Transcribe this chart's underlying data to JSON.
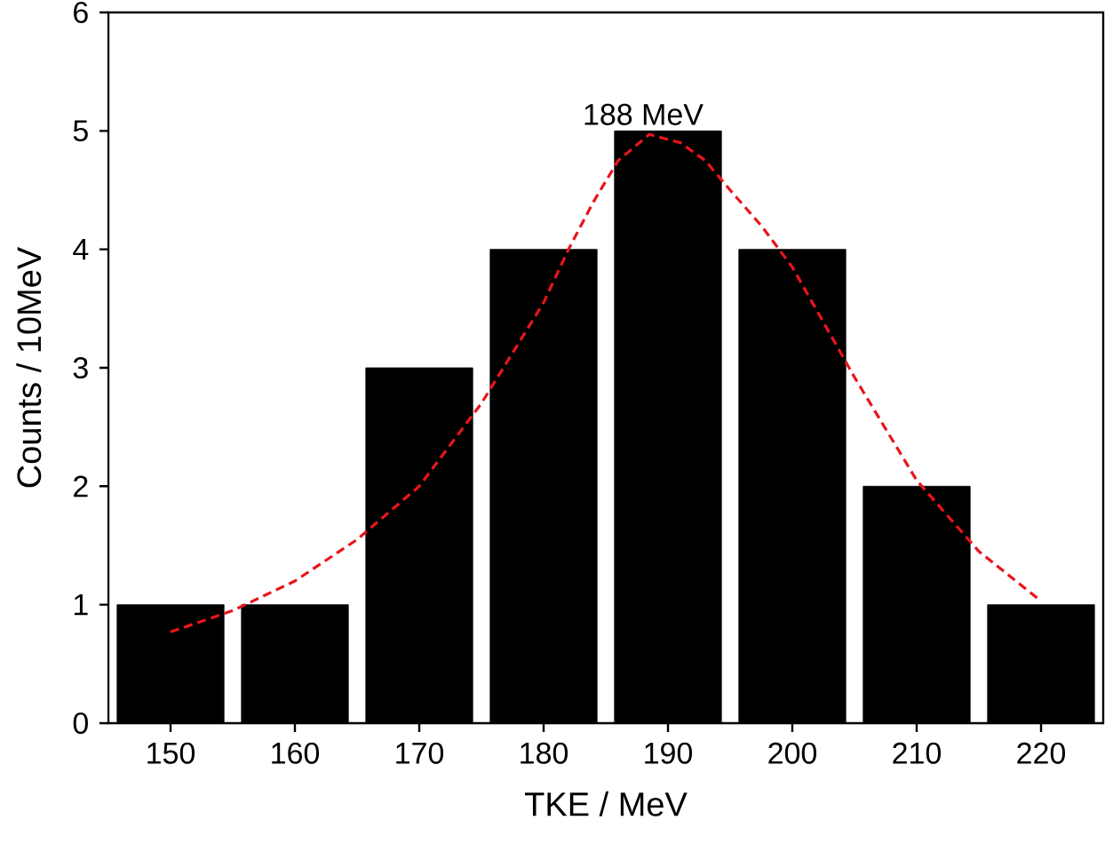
{
  "chart_data": {
    "type": "histogram",
    "xlabel": "TKE / MeV",
    "ylabel": "Counts / 10MeV",
    "bins": [
      145,
      155,
      165,
      175,
      185,
      195,
      205,
      215,
      225
    ],
    "values": [
      1,
      1,
      3,
      4,
      5,
      4,
      2,
      1
    ],
    "color": "#000000",
    "series": [
      {
        "type": "line",
        "color": "#e8151b",
        "line_style": "dashed",
        "x": [
          150,
          155,
          160,
          165,
          170,
          175,
          180,
          182,
          184,
          186,
          188.5,
          191,
          193,
          195,
          197.5,
          200,
          205,
          210,
          215,
          220
        ],
        "values": [
          0.77,
          0.95,
          1.2,
          1.55,
          2.0,
          2.7,
          3.55,
          4.0,
          4.4,
          4.75,
          4.97,
          4.9,
          4.75,
          4.5,
          4.2,
          3.85,
          2.92,
          2.05,
          1.45,
          1.03
        ]
      }
    ],
    "annotations": [
      {
        "text": "188 MeV",
        "x": 188,
        "y": 5
      }
    ],
    "xlim": [
      145,
      225
    ],
    "xticks": [
      150,
      160,
      170,
      180,
      190,
      200,
      210,
      220
    ],
    "ylim": [
      0,
      6
    ],
    "yticks": [
      0,
      1,
      2,
      3,
      4,
      5,
      6
    ],
    "grid": false,
    "marker": "none"
  }
}
